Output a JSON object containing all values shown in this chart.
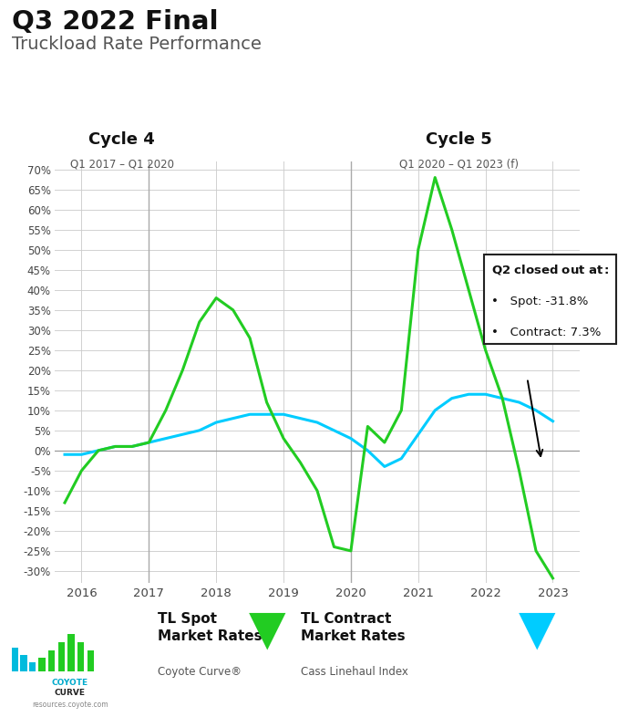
{
  "title1": "Q3 2022 Final",
  "title2": "Truckload Rate Performance",
  "cycle4_label": "Cycle 4",
  "cycle4_sub": "Q1 2017 – Q1 2020",
  "cycle5_label": "Cycle 5",
  "cycle5_sub": "Q1 2020 – Q1 2023 (f)",
  "cycle4_x": 2017.0,
  "cycle5_x": 2020.0,
  "annotation_title": "Q2 closed out at:",
  "annotation_spot": "Spot: -31.8%",
  "annotation_contract": "Contract: 7.3%",
  "spot_color": "#22cc22",
  "contract_color": "#00ccff",
  "background_color": "#ffffff",
  "grid_color": "#cccccc",
  "ylim": [
    -33,
    72
  ],
  "yticks": [
    -30,
    -25,
    -20,
    -15,
    -10,
    -5,
    0,
    5,
    10,
    15,
    20,
    25,
    30,
    35,
    40,
    45,
    50,
    55,
    60,
    65,
    70
  ],
  "spot_x": [
    2015.75,
    2016.0,
    2016.25,
    2016.5,
    2016.75,
    2017.0,
    2017.25,
    2017.5,
    2017.75,
    2018.0,
    2018.25,
    2018.5,
    2018.75,
    2019.0,
    2019.25,
    2019.5,
    2019.75,
    2020.0,
    2020.25,
    2020.5,
    2020.75,
    2021.0,
    2021.25,
    2021.5,
    2021.75,
    2022.0,
    2022.25,
    2022.5,
    2022.75,
    2023.0
  ],
  "spot_y": [
    -13,
    -5,
    0,
    1,
    1,
    2,
    10,
    20,
    32,
    38,
    35,
    28,
    12,
    3,
    -3,
    -10,
    -24,
    -25,
    6,
    2,
    10,
    50,
    68,
    55,
    40,
    25,
    13,
    -5,
    -25,
    -31.8
  ],
  "contract_x": [
    2015.75,
    2016.0,
    2016.25,
    2016.5,
    2016.75,
    2017.0,
    2017.25,
    2017.5,
    2017.75,
    2018.0,
    2018.25,
    2018.5,
    2018.75,
    2019.0,
    2019.25,
    2019.5,
    2019.75,
    2020.0,
    2020.25,
    2020.5,
    2020.75,
    2021.0,
    2021.25,
    2021.5,
    2021.75,
    2022.0,
    2022.25,
    2022.5,
    2022.75,
    2023.0
  ],
  "contract_y": [
    -1,
    -1,
    0,
    1,
    1,
    2,
    3,
    4,
    5,
    7,
    8,
    9,
    9,
    9,
    8,
    7,
    5,
    3,
    0,
    -4,
    -2,
    4,
    10,
    13,
    14,
    14,
    13,
    12,
    10,
    7.3
  ],
  "logo_sub": "resources.coyote.com",
  "legend_spot_label": "TL Spot\nMarket Rates",
  "legend_spot_sub": "Coyote Curve®",
  "legend_contract_label": "TL Contract\nMarket Rates",
  "legend_contract_sub": "Cass Linehaul Index",
  "xlim_left": 2015.6,
  "xlim_right": 2023.4,
  "xticks": [
    2016,
    2017,
    2018,
    2019,
    2020,
    2021,
    2022,
    2023
  ]
}
